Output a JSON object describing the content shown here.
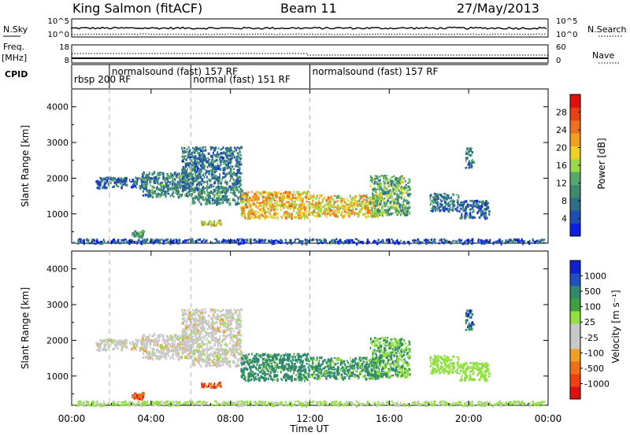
{
  "header": {
    "title": "King Salmon (fitACF)",
    "beam": "Beam 11",
    "date": "27/May/2013"
  },
  "top_panels": {
    "nsky_label": "N.Sky",
    "nsky_tick_hi": "10^5",
    "nsky_tick_lo": "10^0",
    "nsearch_label": "N.Search",
    "nsearch_tick_hi": "10^5",
    "nsearch_tick_lo": "10^0",
    "freq_label": "Freq.",
    "freq_unit": "[MHz]",
    "freq_tick_hi": "18",
    "freq_tick_lo": "8",
    "nave_label": "Nave",
    "nave_tick_hi": "60",
    "nave_tick_lo": "0",
    "cpid_label": "CPID",
    "modes": [
      {
        "label": "rbsp 200 RF",
        "start": 0.0,
        "end": 1.9
      },
      {
        "label": "normalsound (fast) 157 RF",
        "start": 1.9,
        "end": 6.0
      },
      {
        "label": "normal (fast) 151 RF",
        "start": 6.0,
        "end": 12.0
      },
      {
        "label": "normalsound (fast) 157 RF",
        "start": 12.0,
        "end": 24.0
      }
    ]
  },
  "colors": {
    "power_scale": [
      "#0a1fe6",
      "#1c4fb0",
      "#2f6e8a",
      "#3f8a6a",
      "#55a86a",
      "#9bd84a",
      "#f0d020",
      "#f0a020",
      "#f07020",
      "#e84010",
      "#e01010"
    ],
    "velocity_scale": [
      "#e01010",
      "#f04010",
      "#f07018",
      "#f0a020",
      "#c8c8c8",
      "#c8c8c8",
      "#90e040",
      "#3fa040",
      "#2f8a6a",
      "#2050c0",
      "#1020d0"
    ],
    "dash_line": "#b4b4b4"
  },
  "chart_data": [
    {
      "type": "heatmap",
      "name": "power",
      "ylabel": "Slant Range [km]",
      "xlabel": "Time UT",
      "xlim": [
        0,
        24
      ],
      "ylim": [
        180,
        4500
      ],
      "xticks": [
        "00:00",
        "04:00",
        "08:00",
        "12:00",
        "16:00",
        "20:00",
        "00:00"
      ],
      "yticks": [
        "1000",
        "2000",
        "3000",
        "4000"
      ],
      "colorbar": {
        "label": "Power [dB]",
        "ticks": [
          "4",
          "8",
          "12",
          "16",
          "20",
          "24",
          "28"
        ]
      },
      "mode_changes_hours": [
        1.9,
        6.0,
        12.0
      ],
      "echo_regions": [
        {
          "t": [
            1.2,
            3.8
          ],
          "r": [
            1750,
            2050
          ],
          "level": 0.2
        },
        {
          "t": [
            3.5,
            6.0
          ],
          "r": [
            1500,
            2200
          ],
          "level": 0.3
        },
        {
          "t": [
            5.5,
            8.5
          ],
          "r": [
            1700,
            2900
          ],
          "level": 0.25
        },
        {
          "t": [
            6.0,
            8.8
          ],
          "r": [
            1300,
            1700
          ],
          "level": 0.3
        },
        {
          "t": [
            3.0,
            3.6
          ],
          "r": [
            380,
            560
          ],
          "level": 0.35
        },
        {
          "t": [
            6.5,
            7.5
          ],
          "r": [
            700,
            850
          ],
          "level": 0.55
        },
        {
          "t": [
            8.5,
            12.0
          ],
          "r": [
            900,
            1650
          ],
          "level": 0.65
        },
        {
          "t": [
            12.0,
            15.5
          ],
          "r": [
            950,
            1550
          ],
          "level": 0.6
        },
        {
          "t": [
            15.0,
            17.0
          ],
          "r": [
            1000,
            2100
          ],
          "level": 0.4
        },
        {
          "t": [
            18.0,
            19.5
          ],
          "r": [
            1100,
            1600
          ],
          "level": 0.25
        },
        {
          "t": [
            19.5,
            21.0
          ],
          "r": [
            900,
            1400
          ],
          "level": 0.2
        },
        {
          "t": [
            19.8,
            20.2
          ],
          "r": [
            2300,
            2900
          ],
          "level": 0.3
        },
        {
          "t": [
            0.0,
            24.0
          ],
          "r": [
            200,
            320
          ],
          "level": 0.15
        }
      ]
    },
    {
      "type": "heatmap",
      "name": "velocity",
      "ylabel": "Slant Range [km]",
      "xlabel": "Time UT",
      "xlim": [
        0,
        24
      ],
      "ylim": [
        180,
        4500
      ],
      "xticks": [
        "00:00",
        "04:00",
        "08:00",
        "12:00",
        "16:00",
        "20:00",
        "00:00"
      ],
      "yticks": [
        "1000",
        "2000",
        "3000",
        "4000"
      ],
      "colorbar": {
        "label": "Velocity [m s⁻¹]",
        "ticks": [
          "1000",
          "500",
          "100",
          "25",
          "-25",
          "-100",
          "-500",
          "-1000"
        ]
      },
      "mode_changes_hours": [
        1.9,
        6.0,
        12.0
      ],
      "echo_regions": [
        {
          "t": [
            1.2,
            3.8
          ],
          "r": [
            1750,
            2050
          ],
          "velocity": 0
        },
        {
          "t": [
            3.5,
            6.0
          ],
          "r": [
            1500,
            2200
          ],
          "velocity": 0
        },
        {
          "t": [
            5.5,
            8.5
          ],
          "r": [
            1700,
            2900
          ],
          "velocity": 0
        },
        {
          "t": [
            6.0,
            8.8
          ],
          "r": [
            1300,
            1700
          ],
          "velocity": 0
        },
        {
          "t": [
            3.0,
            3.6
          ],
          "r": [
            380,
            560
          ],
          "velocity": -400
        },
        {
          "t": [
            6.5,
            7.5
          ],
          "r": [
            700,
            850
          ],
          "velocity": -400
        },
        {
          "t": [
            8.5,
            12.0
          ],
          "r": [
            900,
            1650
          ],
          "velocity": 200
        },
        {
          "t": [
            12.0,
            15.5
          ],
          "r": [
            950,
            1550
          ],
          "velocity": 150
        },
        {
          "t": [
            15.0,
            17.0
          ],
          "r": [
            1000,
            2100
          ],
          "velocity": 100
        },
        {
          "t": [
            18.0,
            19.5
          ],
          "r": [
            1100,
            1600
          ],
          "velocity": 60
        },
        {
          "t": [
            19.5,
            21.0
          ],
          "r": [
            900,
            1400
          ],
          "velocity": 60
        },
        {
          "t": [
            19.8,
            20.2
          ],
          "r": [
            2300,
            2900
          ],
          "velocity": 500
        },
        {
          "t": [
            0.0,
            24.0
          ],
          "r": [
            200,
            320
          ],
          "velocity": 40
        }
      ]
    }
  ]
}
